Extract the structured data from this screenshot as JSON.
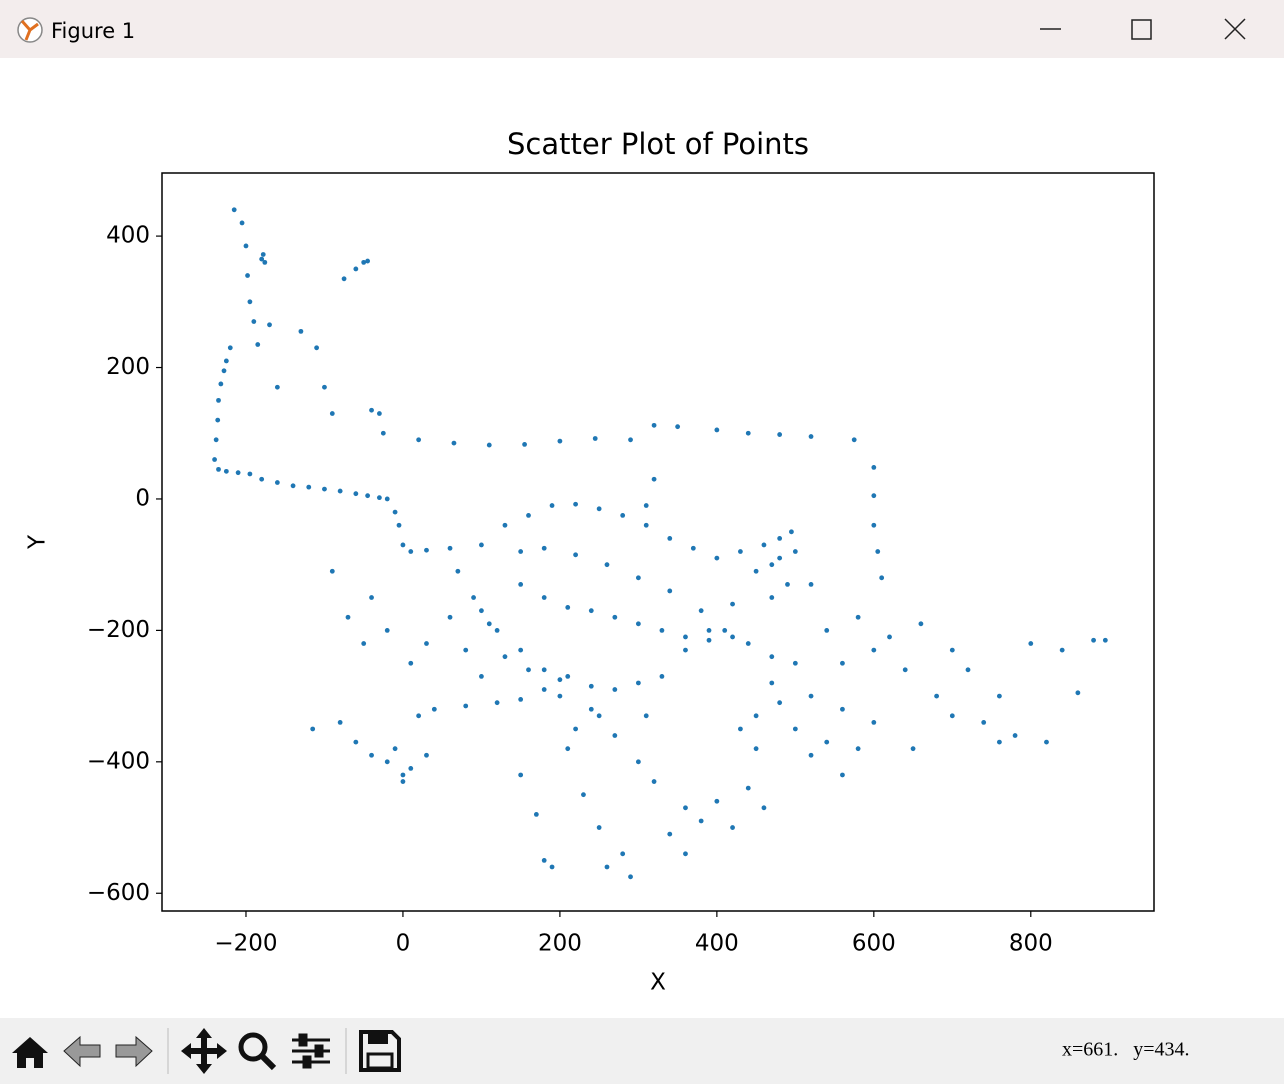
{
  "window": {
    "title": "Figure 1",
    "status": "x=661.   y=434."
  },
  "chart_data": {
    "type": "scatter",
    "title": "Scatter Plot of Points",
    "x_label": "X",
    "y_label": "Y",
    "color": "#1f77b4",
    "xlim": [
      -307,
      957
    ],
    "ylim": [
      -627,
      496
    ],
    "xticks": [
      {
        "value": -200,
        "label": "−200"
      },
      0,
      200,
      400,
      600,
      800
    ],
    "yticks": [
      {
        "value": -600,
        "label": "−600"
      },
      {
        "value": -400,
        "label": "−400"
      },
      {
        "value": -200,
        "label": "−200"
      },
      0,
      200,
      400
    ],
    "x": [
      -240,
      -238,
      -236,
      -235,
      -232,
      -228,
      -225,
      -220,
      -215,
      -205,
      -200,
      -198,
      -195,
      -190,
      -185,
      -180,
      -178,
      -176,
      -170,
      -160,
      -235,
      -225,
      -210,
      -195,
      -180,
      -160,
      -140,
      -120,
      -100,
      -80,
      -60,
      -45,
      -30,
      -20,
      -10,
      -5,
      0,
      10,
      30,
      60,
      -130,
      -110,
      -100,
      -90,
      -75,
      -60,
      -50,
      -45,
      -40,
      -30,
      20,
      65,
      110,
      155,
      200,
      245,
      290,
      320,
      350,
      400,
      440,
      480,
      520,
      575,
      600,
      600,
      600,
      605,
      610,
      -25,
      100,
      130,
      160,
      190,
      220,
      250,
      280,
      310,
      340,
      370,
      400,
      430,
      460,
      470,
      490,
      500,
      480,
      450,
      420,
      390,
      360,
      330,
      300,
      270,
      240,
      210,
      180,
      150,
      120,
      100,
      150,
      180,
      220,
      260,
      300,
      340,
      380,
      410,
      440,
      470,
      150,
      180,
      210,
      240,
      270,
      300,
      330,
      360,
      390,
      420,
      520,
      540,
      560,
      580,
      600,
      620,
      640,
      660,
      680,
      700,
      720,
      740,
      760,
      780,
      800,
      820,
      840,
      860,
      880,
      895,
      -115,
      -80,
      -60,
      -40,
      -20,
      0,
      20,
      40,
      80,
      120,
      150,
      180,
      200,
      -10,
      0,
      10,
      30,
      -90,
      -70,
      -50,
      -40,
      -20,
      10,
      30,
      60,
      70,
      90,
      110,
      130,
      160,
      150,
      170,
      190,
      210,
      230,
      250,
      270,
      290,
      320,
      340,
      360,
      380,
      400,
      420,
      440,
      460,
      450,
      430,
      360,
      310,
      480,
      500,
      520,
      540,
      560,
      580,
      520,
      500,
      470,
      450,
      260,
      280,
      300,
      310,
      320,
      560,
      600,
      650,
      700,
      760,
      220,
      240,
      200,
      250,
      100,
      80,
      470,
      480,
      495,
      180
    ],
    "values": [
      60,
      90,
      120,
      150,
      175,
      195,
      210,
      230,
      440,
      420,
      385,
      340,
      300,
      270,
      235,
      365,
      372,
      360,
      265,
      170,
      45,
      42,
      40,
      38,
      30,
      25,
      20,
      18,
      15,
      12,
      8,
      5,
      2,
      0,
      -20,
      -40,
      -70,
      -80,
      -78,
      -75,
      255,
      230,
      170,
      130,
      335,
      350,
      360,
      362,
      135,
      130,
      90,
      85,
      82,
      83,
      88,
      92,
      90,
      112,
      110,
      105,
      100,
      98,
      95,
      90,
      48,
      5,
      -40,
      -80,
      -120,
      100,
      -70,
      -40,
      -25,
      -10,
      -8,
      -15,
      -25,
      -40,
      -60,
      -75,
      -90,
      -80,
      -70,
      -100,
      -130,
      -80,
      -60,
      -110,
      -160,
      -200,
      -230,
      -270,
      -280,
      -290,
      -285,
      -270,
      -260,
      -230,
      -200,
      -170,
      -80,
      -75,
      -85,
      -100,
      -120,
      -140,
      -170,
      -200,
      -220,
      -240,
      -130,
      -150,
      -165,
      -170,
      -180,
      -190,
      -200,
      -210,
      -215,
      -210,
      -130,
      -200,
      -250,
      -180,
      -230,
      -210,
      -260,
      -190,
      -300,
      -230,
      -260,
      -340,
      -300,
      -360,
      -220,
      -370,
      -230,
      -295,
      -215,
      -215,
      -350,
      -340,
      -370,
      -390,
      -400,
      -420,
      -330,
      -320,
      -315,
      -310,
      -305,
      -290,
      -275,
      -380,
      -430,
      -410,
      -390,
      -110,
      -180,
      -220,
      -150,
      -200,
      -250,
      -220,
      -180,
      -110,
      -150,
      -190,
      -240,
      -260,
      -420,
      -480,
      -560,
      -380,
      -450,
      -500,
      -360,
      -575,
      -430,
      -510,
      -470,
      -490,
      -460,
      -500,
      -440,
      -470,
      -380,
      -350,
      -540,
      -330,
      -310,
      -350,
      -390,
      -370,
      -420,
      -380,
      -300,
      -250,
      -280,
      -330,
      -560,
      -540,
      -400,
      -10,
      30,
      -320,
      -340,
      -380,
      -330,
      -370,
      -350,
      -320,
      -300,
      -330,
      -270,
      -230,
      -150,
      -90,
      -50,
      -550
    ]
  }
}
